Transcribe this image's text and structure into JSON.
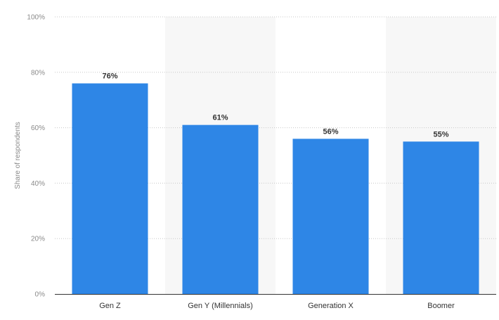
{
  "chart_data": {
    "type": "bar",
    "categories": [
      "Gen Z",
      "Gen Y (Millennials)",
      "Generation X",
      "Boomer"
    ],
    "values": [
      76,
      61,
      56,
      55
    ],
    "value_labels": [
      "76%",
      "61%",
      "56%",
      "55%"
    ],
    "title": "",
    "xlabel": "",
    "ylabel": "Share of respondents",
    "ylim": [
      0,
      100
    ],
    "yticks": [
      0,
      20,
      40,
      60,
      80,
      100
    ],
    "ytick_labels": [
      "0%",
      "20%",
      "40%",
      "60%",
      "80%",
      "100%"
    ],
    "grid": true,
    "legend": "none",
    "bar_color": "#2e86e6",
    "band_color": "#f7f7f7"
  }
}
